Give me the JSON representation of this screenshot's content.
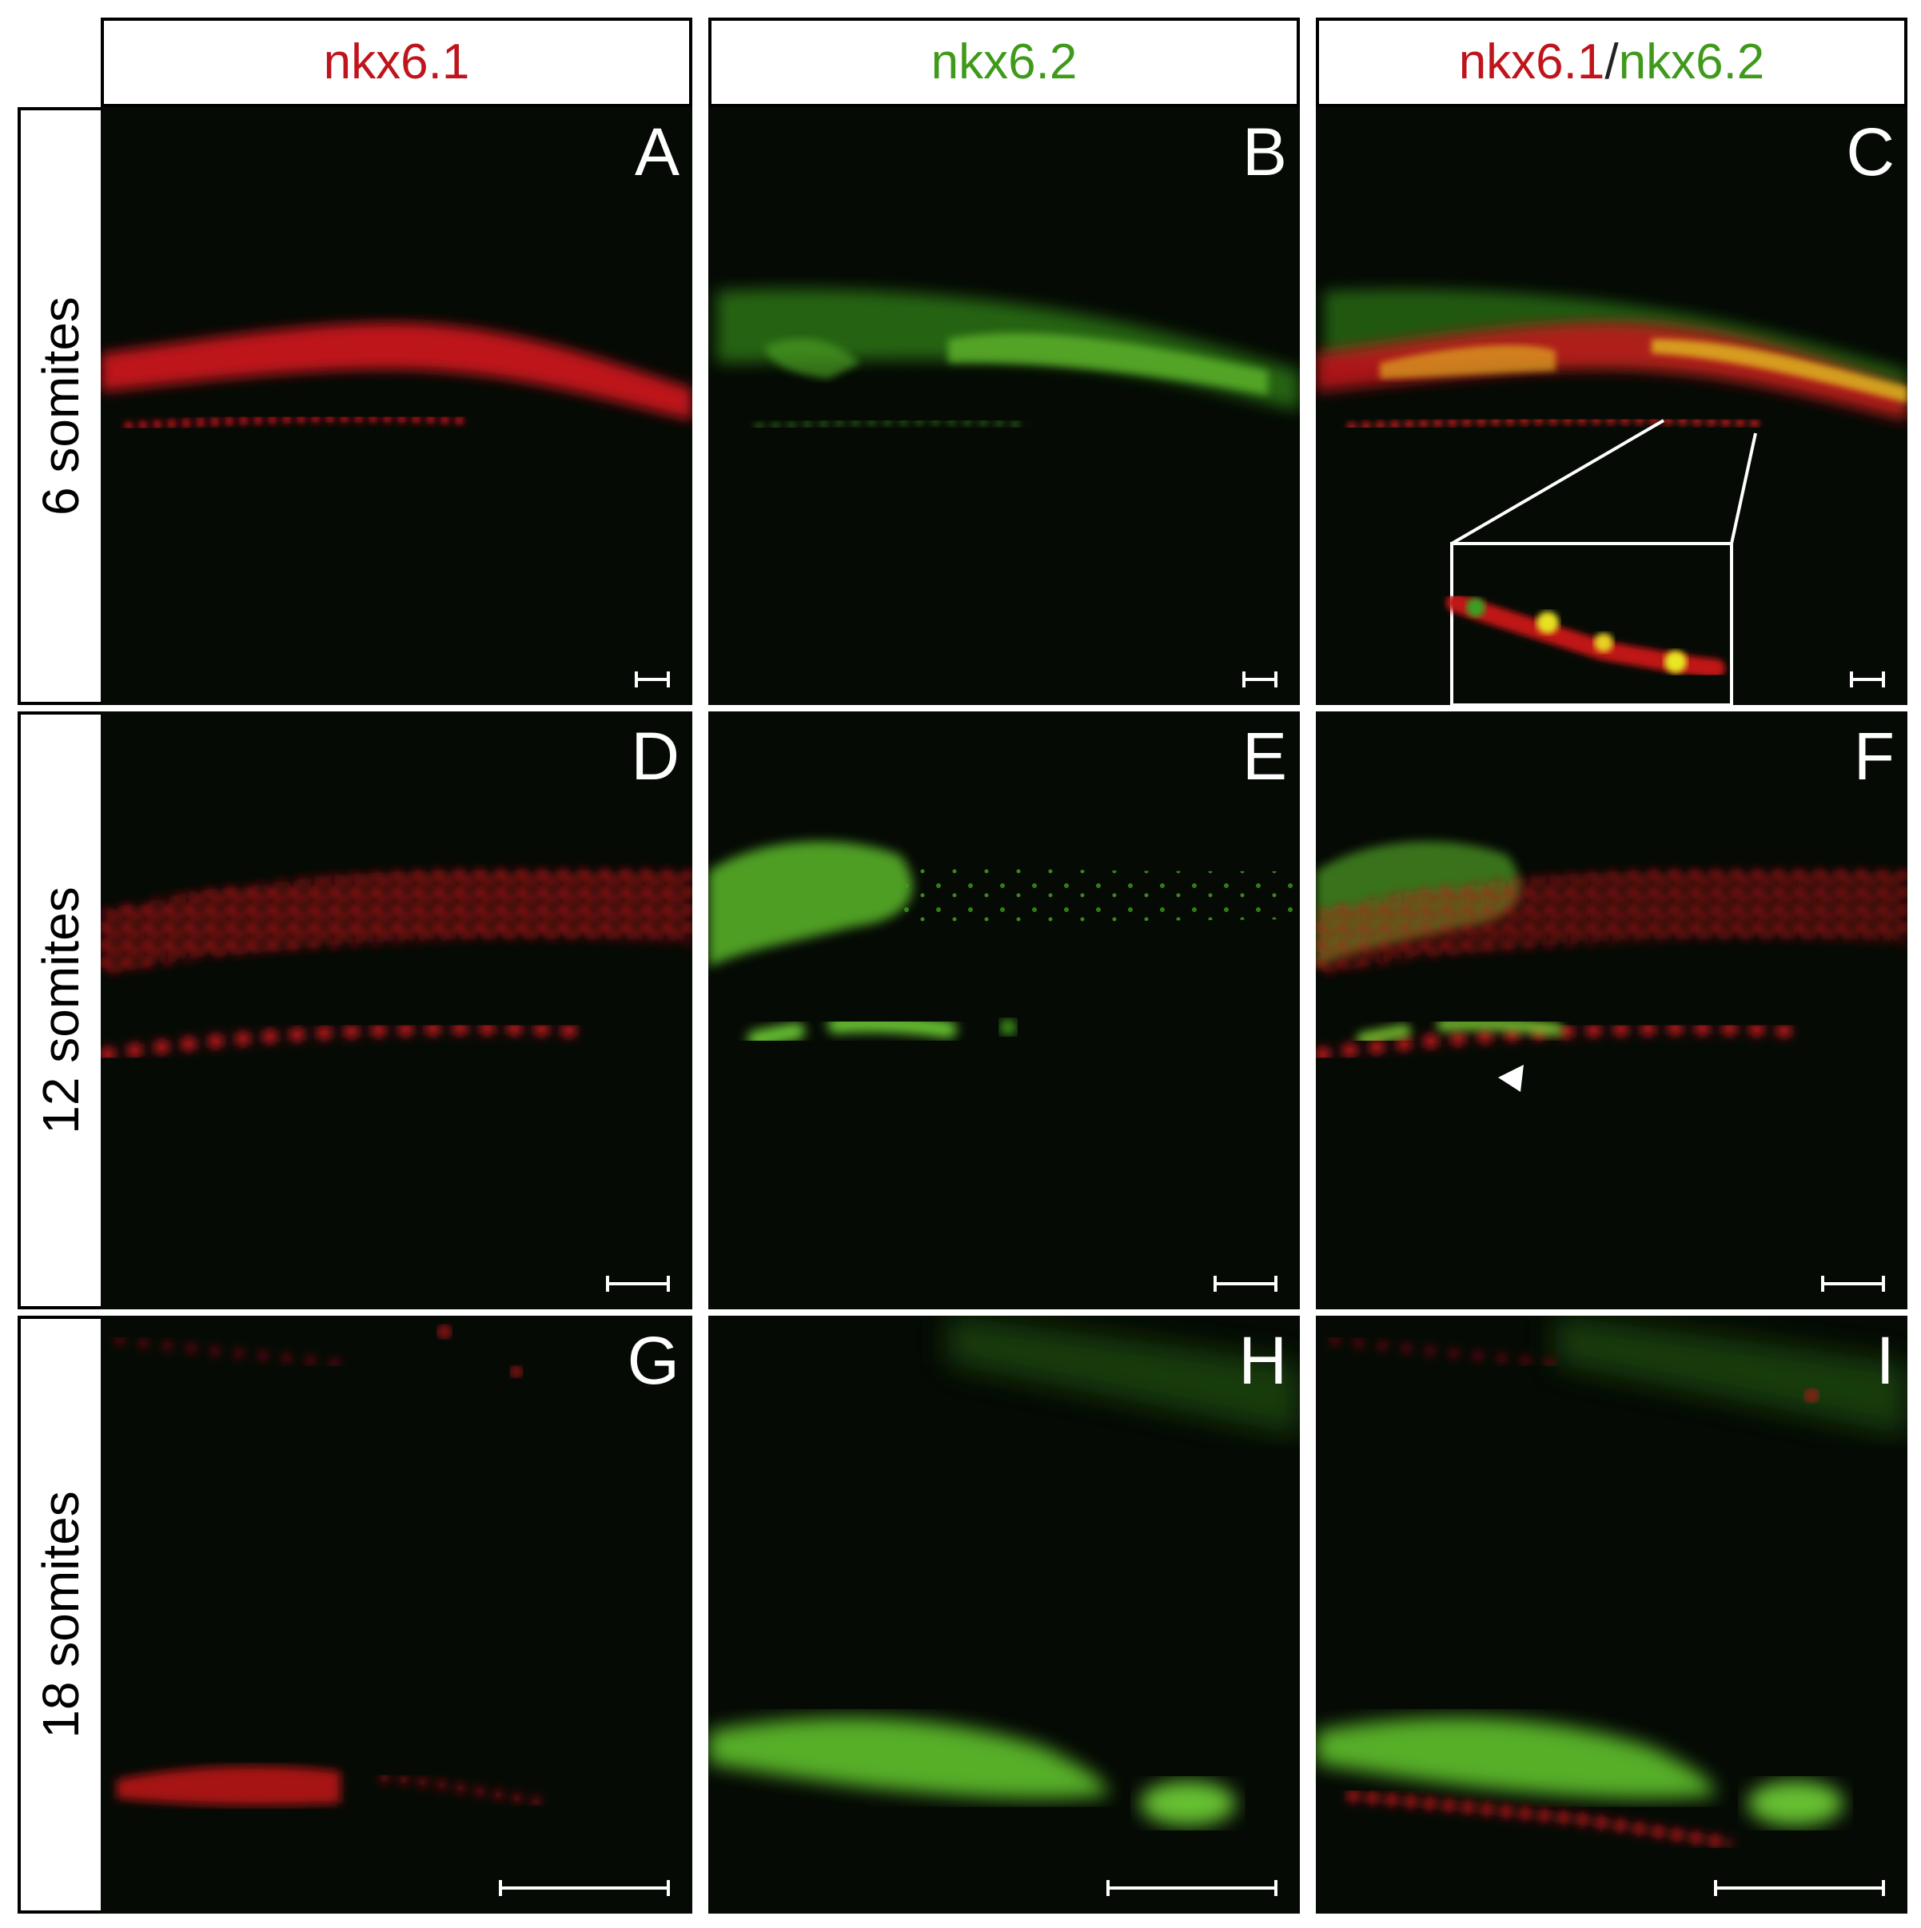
{
  "columns": [
    {
      "id": "col-1",
      "label_parts": [
        {
          "text": "nkx6.1",
          "color": "#c0141c"
        }
      ]
    },
    {
      "id": "col-2",
      "label_parts": [
        {
          "text": "nkx6.2",
          "color": "#3f9a1c"
        }
      ]
    },
    {
      "id": "col-3",
      "label_parts": [
        {
          "text": "nkx6.1",
          "color": "#c0141c"
        },
        {
          "text": "/",
          "color": "#222222"
        },
        {
          "text": "nkx6.2",
          "color": "#3f9a1c"
        }
      ]
    }
  ],
  "rows": [
    {
      "id": "row-1",
      "label": "6 somites"
    },
    {
      "id": "row-2",
      "label": "12 somites"
    },
    {
      "id": "row-3",
      "label": "18 somites"
    }
  ],
  "panels": [
    {
      "letter": "A",
      "channel": "red"
    },
    {
      "letter": "B",
      "channel": "green"
    },
    {
      "letter": "C",
      "channel": "merge",
      "inset": true
    },
    {
      "letter": "D",
      "channel": "red"
    },
    {
      "letter": "E",
      "channel": "green"
    },
    {
      "letter": "F",
      "channel": "merge",
      "arrowhead": true
    },
    {
      "letter": "G",
      "channel": "red"
    },
    {
      "letter": "H",
      "channel": "green"
    },
    {
      "letter": "I",
      "channel": "merge"
    }
  ],
  "colors": {
    "nkx6_1": "#c0141c",
    "nkx6_2": "#3f9a1c",
    "panel_background": "#050a05",
    "overlay": "#ffffff"
  }
}
